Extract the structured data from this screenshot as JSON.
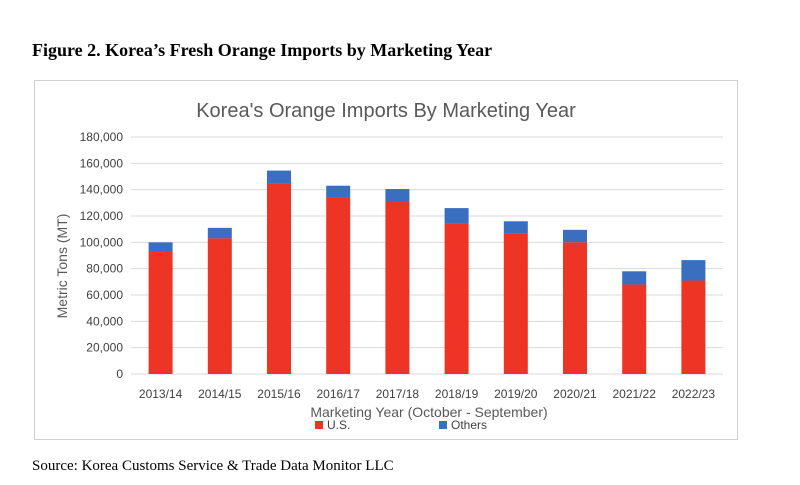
{
  "figure": {
    "caption": "Figure 2. Korea’s Fresh Orange Imports by Marketing Year",
    "source": "Source: Korea Customs Service & Trade Data Monitor LLC"
  },
  "colors": {
    "us": "#EE3424",
    "others": "#3A6FBF",
    "grid": "#d9d9d9",
    "axis_text": "#404040",
    "title_text": "#595959"
  },
  "chart_data": {
    "type": "bar",
    "stacked": true,
    "title": "Korea's Orange Imports By Marketing Year",
    "xlabel": "Marketing Year (October - September)",
    "ylabel": "Metric Tons (MT)",
    "ylim": [
      0,
      180000
    ],
    "yticks": [
      "0",
      "20,000",
      "40,000",
      "60,000",
      "80,000",
      "100,000",
      "120,000",
      "140,000",
      "160,000",
      "180,000"
    ],
    "categories": [
      "2013/14",
      "2014/15",
      "2015/16",
      "2016/17",
      "2017/18",
      "2018/19",
      "2019/20",
      "2020/21",
      "2021/22",
      "2022/23"
    ],
    "series": [
      {
        "name": "U.S.",
        "values": [
          93000,
          103000,
          145000,
          134000,
          131000,
          114000,
          107000,
          100000,
          68000,
          71000
        ]
      },
      {
        "name": "Others",
        "values": [
          7000,
          8000,
          9500,
          9000,
          9500,
          12000,
          9000,
          9500,
          10000,
          15500
        ]
      }
    ],
    "grid": true,
    "legend_position": "bottom"
  }
}
